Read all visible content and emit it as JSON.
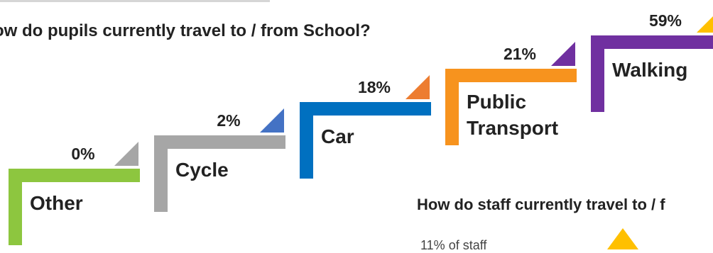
{
  "title": "ow do pupils currently travel to / from School?",
  "chart_data": {
    "type": "bar",
    "title": "ow do pupils currently travel to / from School?",
    "categories": [
      "Other",
      "Cycle",
      "Car",
      "Public\nTransport",
      "Walking"
    ],
    "values": [
      0,
      2,
      18,
      21,
      59
    ],
    "value_labels": [
      "0%",
      "2%",
      "18%",
      "21%",
      "59%"
    ],
    "unit": "%",
    "colors": [
      "#8dc63f",
      "#a6a6a6",
      "#0070c0",
      "#f7931e",
      "#7030a0"
    ],
    "marker_colors": [
      "#a6a6a6",
      "#4472c4",
      "#ed7d31",
      "#7030a0",
      "#ffc000"
    ],
    "style": "staircase",
    "legend": "none",
    "grid": false
  },
  "staff": {
    "title": "How do staff currently travel to / f",
    "note": "11% of staff",
    "marker_color": "#ffc000"
  }
}
